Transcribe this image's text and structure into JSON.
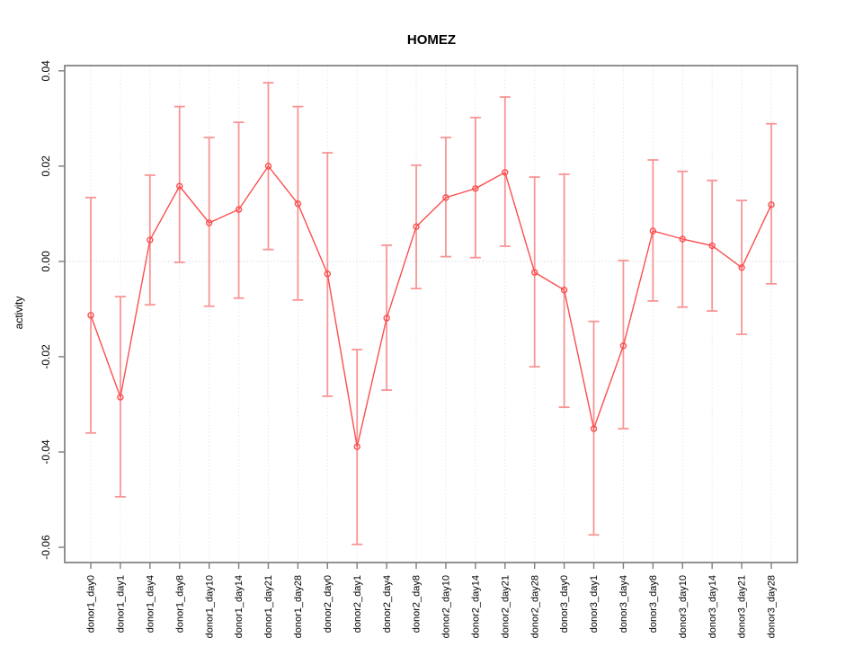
{
  "chart_data": {
    "type": "line",
    "subtype": "points-with-error-bars",
    "title": "HOMEZ",
    "xlabel": "",
    "ylabel": "activity",
    "categories": [
      "donor1_day0",
      "donor1_day1",
      "donor1_day4",
      "donor1_day8",
      "donor1_day10",
      "donor1_day14",
      "donor1_day21",
      "donor1_day28",
      "donor2_day0",
      "donor2_day1",
      "donor2_day4",
      "donor2_day8",
      "donor2_day10",
      "donor2_day14",
      "donor2_day21",
      "donor2_day28",
      "donor3_day0",
      "donor3_day1",
      "donor3_day4",
      "donor3_day8",
      "donor3_day10",
      "donor3_day14",
      "donor3_day21",
      "donor3_day28"
    ],
    "series": [
      {
        "name": "activity",
        "marker": "open-circle",
        "values": [
          -0.0113,
          -0.0285,
          0.0045,
          0.0158,
          0.0081,
          0.0109,
          0.02,
          0.0121,
          -0.0026,
          -0.0389,
          -0.0119,
          0.0073,
          0.0134,
          0.0153,
          0.0187,
          -0.0023,
          -0.006,
          -0.0351,
          -0.0177,
          0.0064,
          0.0047,
          0.0033,
          -0.0013,
          0.0119
        ],
        "ci_upper": [
          0.0134,
          -0.0074,
          0.0181,
          0.0325,
          0.026,
          0.0292,
          0.0375,
          0.0325,
          0.0228,
          -0.0185,
          0.0034,
          0.0202,
          0.026,
          0.0302,
          0.0345,
          0.0177,
          0.0183,
          -0.0126,
          0.0002,
          0.0213,
          0.0189,
          0.017,
          0.0128,
          0.0289
        ],
        "ci_lower": [
          -0.036,
          -0.0494,
          -0.0091,
          -0.0002,
          -0.0094,
          -0.0077,
          0.0025,
          -0.0081,
          -0.0283,
          -0.0594,
          -0.027,
          -0.0057,
          0.001,
          0.0008,
          0.0032,
          -0.0221,
          -0.0306,
          -0.0574,
          -0.0351,
          -0.0083,
          -0.0096,
          -0.0104,
          -0.0153,
          -0.0047
        ]
      }
    ],
    "ytick_labels": [
      "0.04",
      "0.02",
      "0.00",
      "-0.02",
      "-0.04",
      "-0.06"
    ],
    "ylim": [
      -0.0632,
      0.0411
    ],
    "grid": "vertical-dotted",
    "zero_line": true,
    "legend": "none",
    "colors": {
      "point_line": "#fb4f4f",
      "error_bar": "#f89595",
      "grid_line": "#e2e2e2",
      "zero_line": "#d2d2d2",
      "frame": "#7e7e7e",
      "text": "#000000",
      "background": "#ffffff"
    }
  }
}
